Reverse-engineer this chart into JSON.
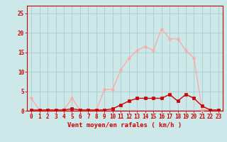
{
  "x_labels": [
    0,
    1,
    2,
    3,
    4,
    5,
    6,
    7,
    8,
    9,
    10,
    11,
    12,
    13,
    14,
    15,
    16,
    17,
    18,
    19,
    20,
    21,
    22,
    23
  ],
  "line1_y": [
    3.2,
    0.2,
    0.2,
    0.2,
    0.2,
    3.2,
    0.2,
    0.2,
    0.2,
    5.5,
    5.5,
    10.5,
    13.5,
    15.5,
    16.5,
    15.5,
    21.0,
    18.5,
    18.5,
    15.5,
    13.5,
    0.2,
    0.2,
    0.2
  ],
  "line2_y": [
    0.2,
    0.2,
    0.2,
    0.2,
    0.2,
    0.5,
    0.2,
    0.2,
    0.2,
    0.2,
    0.5,
    1.5,
    2.5,
    3.2,
    3.2,
    3.2,
    3.2,
    4.2,
    2.5,
    4.2,
    3.2,
    1.2,
    0.2,
    0.2
  ],
  "bg_color": "#cce8e8",
  "line1_color": "#ffaaaa",
  "line2_color": "#cc0000",
  "grid_color": "#aacccc",
  "axis_color": "#cc0000",
  "tick_color": "#cc0000",
  "xlabel": "Vent moyen/en rafales ( km/h )",
  "ylim": [
    0,
    27
  ],
  "yticks": [
    0,
    5,
    10,
    15,
    20,
    25
  ],
  "marker_size": 2.5,
  "line_width": 1.0,
  "xlabel_fontsize": 6.5,
  "tick_fontsize": 5.5
}
